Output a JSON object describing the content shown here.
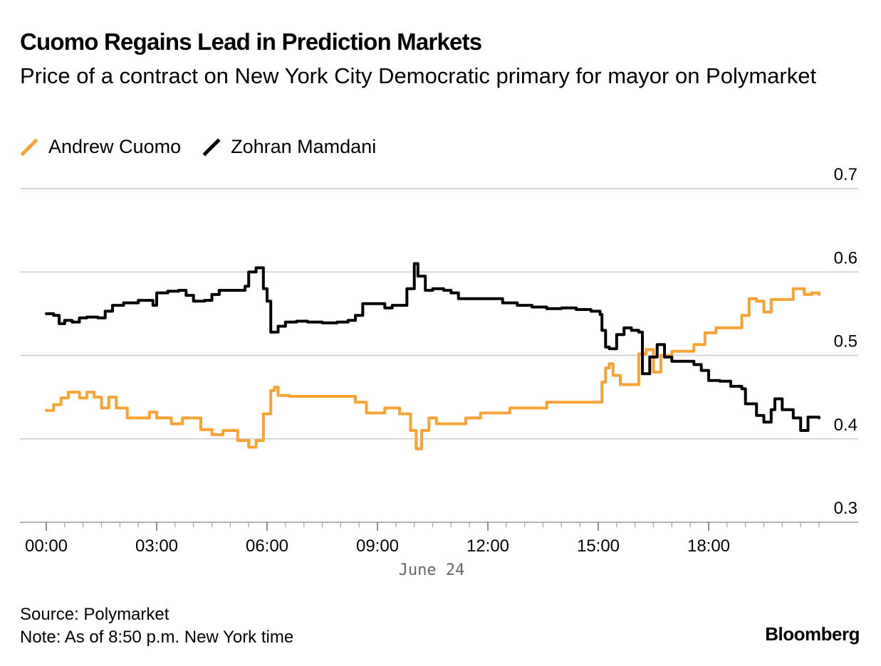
{
  "title": "Cuomo Regains Lead in Prediction Markets",
  "subtitle": "Price of a contract on New York City Democratic primary for mayor on Polymarket",
  "legend": {
    "cuomo": "Andrew Cuomo",
    "mamdani": "Zohran Mamdani"
  },
  "colors": {
    "cuomo": "#f9a235",
    "mamdani": "#000000",
    "grid": "#cccccc",
    "date_label": "#666666"
  },
  "footer": {
    "source": "Source: Polymarket",
    "note": "Note: As of 8:50 p.m. New York time"
  },
  "brand": "Bloomberg",
  "chart_data": {
    "type": "line",
    "title": "Cuomo Regains Lead in Prediction Markets",
    "xlabel": "June 24",
    "ylabel": "",
    "xlim": [
      0,
      21
    ],
    "ylim": [
      0.3,
      0.7
    ],
    "x_ticks": [
      0,
      3,
      6,
      9,
      12,
      15,
      18
    ],
    "x_tick_labels": [
      "00:00",
      "03:00",
      "06:00",
      "09:00",
      "12:00",
      "15:00",
      "18:00"
    ],
    "y_ticks": [
      0.3,
      0.4,
      0.5,
      0.6,
      0.7
    ],
    "y_tick_labels": [
      "0.3",
      "0.4",
      "0.5",
      "0.6",
      "0.7"
    ],
    "grid": true,
    "y_axis_position": "right",
    "legend_position": "top-left",
    "series": [
      {
        "name": "Andrew Cuomo",
        "color": "#f9a235",
        "points": [
          [
            0.0,
            0.434
          ],
          [
            0.2,
            0.441
          ],
          [
            0.4,
            0.449
          ],
          [
            0.6,
            0.456
          ],
          [
            0.9,
            0.449
          ],
          [
            1.1,
            0.456
          ],
          [
            1.3,
            0.45
          ],
          [
            1.5,
            0.437
          ],
          [
            1.7,
            0.45
          ],
          [
            1.9,
            0.437
          ],
          [
            2.2,
            0.425
          ],
          [
            2.6,
            0.425
          ],
          [
            2.8,
            0.432
          ],
          [
            3.0,
            0.425
          ],
          [
            3.4,
            0.418
          ],
          [
            3.7,
            0.425
          ],
          [
            4.2,
            0.411
          ],
          [
            4.5,
            0.405
          ],
          [
            4.8,
            0.41
          ],
          [
            5.2,
            0.398
          ],
          [
            5.5,
            0.39
          ],
          [
            5.7,
            0.398
          ],
          [
            5.9,
            0.43
          ],
          [
            6.1,
            0.458
          ],
          [
            6.2,
            0.462
          ],
          [
            6.3,
            0.452
          ],
          [
            6.6,
            0.451
          ],
          [
            7.0,
            0.451
          ],
          [
            8.0,
            0.451
          ],
          [
            8.4,
            0.444
          ],
          [
            8.7,
            0.431
          ],
          [
            9.2,
            0.437
          ],
          [
            9.6,
            0.43
          ],
          [
            9.9,
            0.41
          ],
          [
            10.05,
            0.388
          ],
          [
            10.2,
            0.41
          ],
          [
            10.4,
            0.425
          ],
          [
            10.6,
            0.418
          ],
          [
            11.0,
            0.418
          ],
          [
            11.4,
            0.425
          ],
          [
            11.8,
            0.431
          ],
          [
            12.2,
            0.431
          ],
          [
            12.6,
            0.437
          ],
          [
            13.0,
            0.437
          ],
          [
            13.6,
            0.444
          ],
          [
            14.0,
            0.444
          ],
          [
            14.5,
            0.444
          ],
          [
            15.0,
            0.444
          ],
          [
            15.1,
            0.468
          ],
          [
            15.2,
            0.485
          ],
          [
            15.3,
            0.49
          ],
          [
            15.4,
            0.476
          ],
          [
            15.6,
            0.465
          ],
          [
            16.0,
            0.465
          ],
          [
            16.1,
            0.502
          ],
          [
            16.3,
            0.507
          ],
          [
            16.5,
            0.48
          ],
          [
            16.7,
            0.5
          ],
          [
            17.0,
            0.505
          ],
          [
            17.4,
            0.505
          ],
          [
            17.6,
            0.513
          ],
          [
            17.9,
            0.527
          ],
          [
            18.2,
            0.533
          ],
          [
            18.6,
            0.533
          ],
          [
            18.9,
            0.548
          ],
          [
            19.1,
            0.568
          ],
          [
            19.3,
            0.565
          ],
          [
            19.5,
            0.552
          ],
          [
            19.7,
            0.567
          ],
          [
            20.0,
            0.567
          ],
          [
            20.3,
            0.58
          ],
          [
            20.6,
            0.573
          ],
          [
            20.8,
            0.575
          ],
          [
            21.0,
            0.573
          ]
        ]
      },
      {
        "name": "Zohran Mamdani",
        "color": "#000000",
        "points": [
          [
            0.0,
            0.55
          ],
          [
            0.2,
            0.548
          ],
          [
            0.35,
            0.538
          ],
          [
            0.5,
            0.542
          ],
          [
            0.7,
            0.54
          ],
          [
            0.9,
            0.545
          ],
          [
            1.1,
            0.546
          ],
          [
            1.4,
            0.545
          ],
          [
            1.6,
            0.553
          ],
          [
            1.8,
            0.56
          ],
          [
            2.1,
            0.563
          ],
          [
            2.5,
            0.566
          ],
          [
            2.9,
            0.56
          ],
          [
            3.0,
            0.575
          ],
          [
            3.3,
            0.577
          ],
          [
            3.6,
            0.578
          ],
          [
            3.8,
            0.572
          ],
          [
            4.0,
            0.565
          ],
          [
            4.3,
            0.566
          ],
          [
            4.5,
            0.573
          ],
          [
            4.7,
            0.578
          ],
          [
            5.0,
            0.578
          ],
          [
            5.3,
            0.578
          ],
          [
            5.4,
            0.583
          ],
          [
            5.5,
            0.6
          ],
          [
            5.7,
            0.605
          ],
          [
            5.9,
            0.58
          ],
          [
            6.0,
            0.565
          ],
          [
            6.1,
            0.528
          ],
          [
            6.3,
            0.535
          ],
          [
            6.5,
            0.54
          ],
          [
            6.8,
            0.541
          ],
          [
            7.1,
            0.54
          ],
          [
            7.5,
            0.539
          ],
          [
            7.9,
            0.54
          ],
          [
            8.2,
            0.542
          ],
          [
            8.4,
            0.548
          ],
          [
            8.6,
            0.562
          ],
          [
            8.9,
            0.562
          ],
          [
            9.2,
            0.557
          ],
          [
            9.4,
            0.56
          ],
          [
            9.6,
            0.56
          ],
          [
            9.8,
            0.58
          ],
          [
            10.0,
            0.61
          ],
          [
            10.1,
            0.595
          ],
          [
            10.3,
            0.578
          ],
          [
            10.5,
            0.58
          ],
          [
            10.8,
            0.578
          ],
          [
            11.0,
            0.575
          ],
          [
            11.2,
            0.568
          ],
          [
            11.6,
            0.568
          ],
          [
            12.0,
            0.568
          ],
          [
            12.4,
            0.563
          ],
          [
            12.8,
            0.56
          ],
          [
            13.2,
            0.558
          ],
          [
            13.6,
            0.556
          ],
          [
            14.0,
            0.557
          ],
          [
            14.4,
            0.555
          ],
          [
            14.8,
            0.553
          ],
          [
            15.05,
            0.549
          ],
          [
            15.1,
            0.53
          ],
          [
            15.2,
            0.51
          ],
          [
            15.3,
            0.508
          ],
          [
            15.5,
            0.525
          ],
          [
            15.7,
            0.533
          ],
          [
            15.9,
            0.53
          ],
          [
            16.1,
            0.528
          ],
          [
            16.2,
            0.478
          ],
          [
            16.4,
            0.498
          ],
          [
            16.6,
            0.513
          ],
          [
            16.8,
            0.498
          ],
          [
            17.0,
            0.493
          ],
          [
            17.3,
            0.493
          ],
          [
            17.6,
            0.489
          ],
          [
            17.8,
            0.482
          ],
          [
            18.0,
            0.47
          ],
          [
            18.3,
            0.469
          ],
          [
            18.6,
            0.463
          ],
          [
            18.9,
            0.46
          ],
          [
            19.0,
            0.442
          ],
          [
            19.3,
            0.428
          ],
          [
            19.5,
            0.42
          ],
          [
            19.7,
            0.435
          ],
          [
            19.8,
            0.448
          ],
          [
            20.0,
            0.435
          ],
          [
            20.3,
            0.425
          ],
          [
            20.5,
            0.41
          ],
          [
            20.7,
            0.426
          ],
          [
            21.0,
            0.425
          ]
        ]
      }
    ],
    "annotations": [
      "June 24"
    ]
  }
}
